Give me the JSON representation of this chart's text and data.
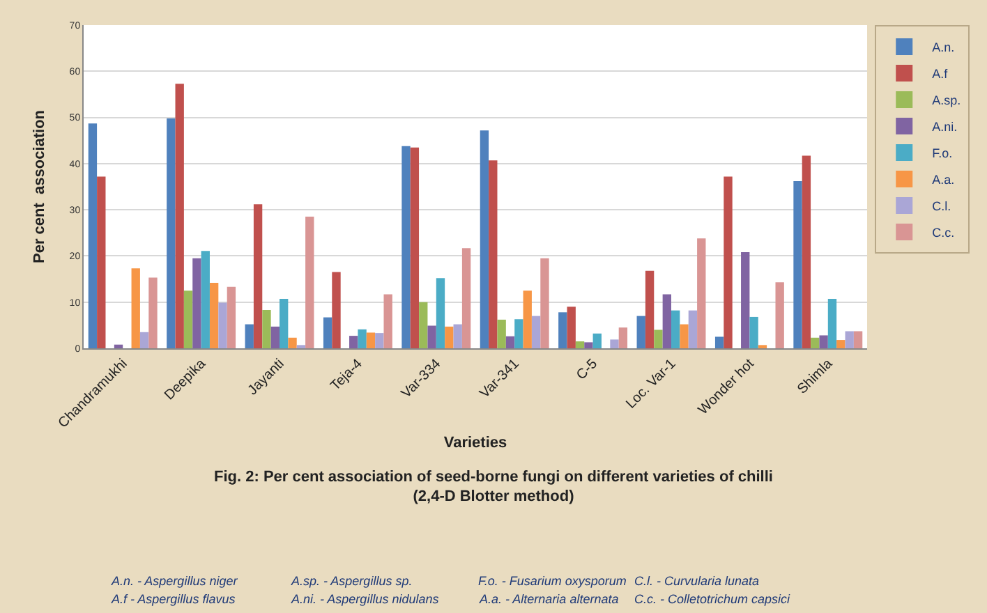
{
  "chart_data": {
    "type": "bar",
    "title": "Fig. 2: Per cent association of seed-borne fungi on different varieties of chilli\n(2,4-D Blotter method)",
    "xlabel": "Varieties",
    "ylabel": "Per cent  association",
    "categories": [
      "Chandramukhi",
      "Deepika",
      "Jayanti",
      "Teja-4",
      "Var-334",
      "Var-341",
      "C-5",
      "Loc. Var-1",
      "Wonder hot",
      "Shimla"
    ],
    "series": [
      {
        "name": "A.n.",
        "color": "#4f81bd",
        "values": [
          48.7,
          49.8,
          5.2,
          6.7,
          43.8,
          47.2,
          7.8,
          7,
          2.5,
          36.2
        ]
      },
      {
        "name": "A.f",
        "color": "#c0504d",
        "values": [
          37.2,
          57.3,
          31.2,
          16.5,
          43.5,
          40.7,
          9,
          16.8,
          37.2,
          41.7
        ]
      },
      {
        "name": "A.sp.",
        "color": "#9bbb59",
        "values": [
          0,
          12.5,
          8.3,
          0,
          10,
          6.2,
          1.5,
          4,
          0,
          2.3
        ]
      },
      {
        "name": "A.ni.",
        "color": "#8064a2",
        "values": [
          0.8,
          19.5,
          4.7,
          2.7,
          4.9,
          2.6,
          1.3,
          11.7,
          20.8,
          2.8
        ]
      },
      {
        "name": "F.o.",
        "color": "#4bacc6",
        "values": [
          0,
          21.1,
          10.7,
          4.1,
          15.2,
          6.3,
          3.2,
          8.2,
          6.8,
          10.7
        ]
      },
      {
        "name": "A.a.",
        "color": "#f79646",
        "values": [
          17.3,
          14.2,
          2.3,
          3.4,
          4.7,
          12.5,
          0,
          5.2,
          0.7,
          1.8
        ]
      },
      {
        "name": "C.l.",
        "color": "#aaa6d6",
        "values": [
          3.5,
          9.9,
          0.7,
          3.3,
          5.2,
          7,
          1.9,
          8.2,
          0,
          3.7
        ]
      },
      {
        "name": "C.c.",
        "color": "#d99594",
        "values": [
          15.3,
          13.3,
          28.5,
          11.7,
          21.7,
          19.5,
          4.5,
          23.8,
          14.3,
          3.7
        ]
      }
    ],
    "ylim": [
      0,
      70
    ],
    "yticks": [
      0,
      10,
      20,
      30,
      40,
      50,
      60,
      70
    ],
    "grid": "y",
    "legend": "right",
    "annotations": [
      "A.n. - Aspergillus niger",
      "A.f - Aspergillus flavus",
      "A.sp. - Aspergillus sp.",
      "A.ni. - Aspergillus nidulans",
      "F.o. - Fusarium oxysporum",
      "A.a. - Alternaria alternata",
      "C.l. - Curvularia lunata",
      "C.c. - Colletotrichum capsici"
    ]
  }
}
